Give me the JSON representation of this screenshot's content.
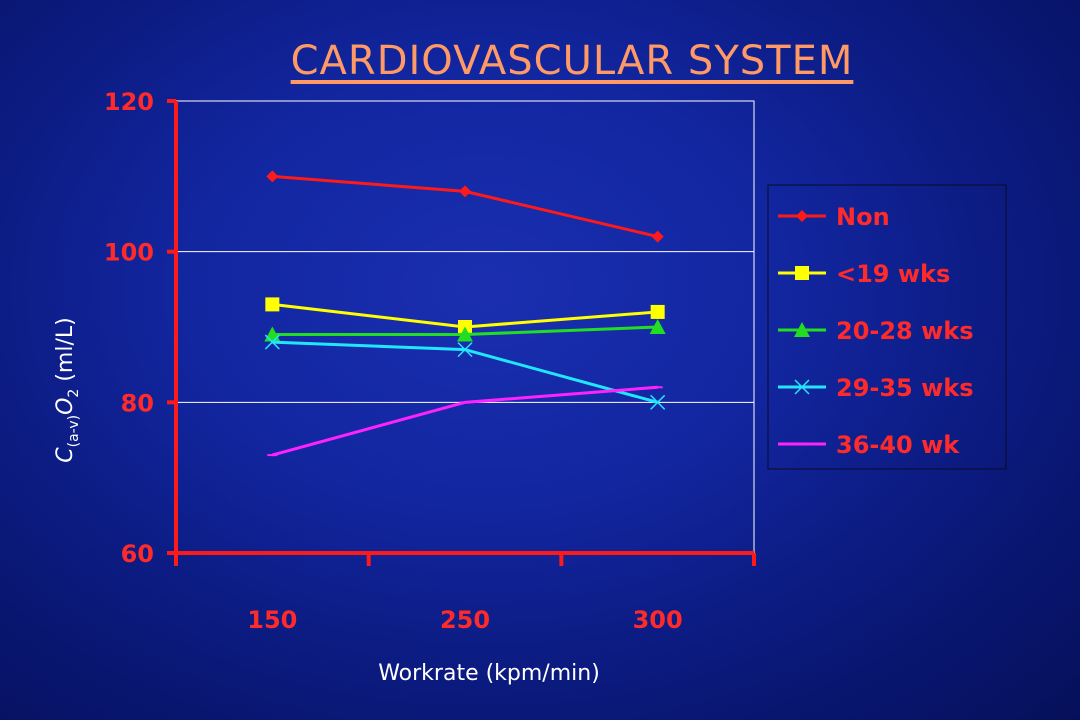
{
  "slide": {
    "title": "CARDIOVASCULAR SYSTEM"
  },
  "chart_data": {
    "type": "line",
    "title": "",
    "xlabel": "Workrate (kpm/min)",
    "ylabel": "C(a-v)O2 (ml/L)",
    "ylabel_parts": {
      "c": "C",
      "sub1": "(a-v)",
      "o": "O",
      "sub2": "2",
      "unit": " (ml/L)"
    },
    "categories": [
      "150",
      "250",
      "300"
    ],
    "ylim": [
      60,
      120
    ],
    "yticks": [
      60,
      80,
      100,
      120
    ],
    "grid": "horizontal",
    "legend_position": "right",
    "series": [
      {
        "name": "Non",
        "values": [
          110,
          108,
          102
        ],
        "color": "#ff1a1a",
        "marker": "diamond"
      },
      {
        "name": "<19 wks",
        "values": [
          93,
          90,
          92
        ],
        "color": "#ffff00",
        "marker": "square"
      },
      {
        "name": "20-28 wks",
        "values": [
          89,
          89,
          90
        ],
        "color": "#22dd22",
        "marker": "triangle"
      },
      {
        "name": "29-35 wks",
        "values": [
          88,
          87,
          80
        ],
        "color": "#22e5ff",
        "marker": "x"
      },
      {
        "name": "36-40 wk",
        "values": [
          73,
          80,
          82
        ],
        "color": "#ff22ff",
        "marker": "dash"
      }
    ]
  }
}
